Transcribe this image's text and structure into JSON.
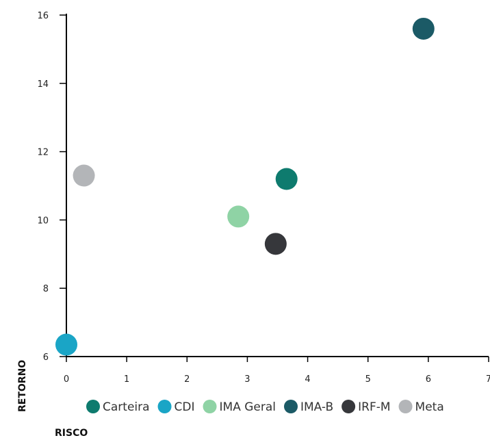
{
  "chart_data": {
    "type": "scatter",
    "xlabel": "RISCO",
    "ylabel": "RETORNO",
    "xlim": [
      0,
      7
    ],
    "ylim": [
      6,
      16
    ],
    "xticks": [
      "0",
      "1",
      "2",
      "3",
      "4",
      "5",
      "6",
      "7"
    ],
    "yticks": [
      "6",
      "8",
      "10",
      "12",
      "14",
      "16"
    ],
    "grid": false,
    "legend_position": "bottom",
    "series": [
      {
        "name": "Carteira",
        "color": "#0e7b6e",
        "x": 3.65,
        "y": 11.2
      },
      {
        "name": "CDI",
        "color": "#1aa5c6",
        "x": 0.0,
        "y": 6.35
      },
      {
        "name": "IMA Geral",
        "color": "#8fd3a5",
        "x": 2.85,
        "y": 10.1
      },
      {
        "name": "IMA-B",
        "color": "#1b5a66",
        "x": 5.92,
        "y": 15.6
      },
      {
        "name": "IRF-M",
        "color": "#36373b",
        "x": 3.47,
        "y": 9.3
      },
      {
        "name": "Meta",
        "color": "#b3b5b8",
        "x": 0.29,
        "y": 11.3
      }
    ]
  }
}
